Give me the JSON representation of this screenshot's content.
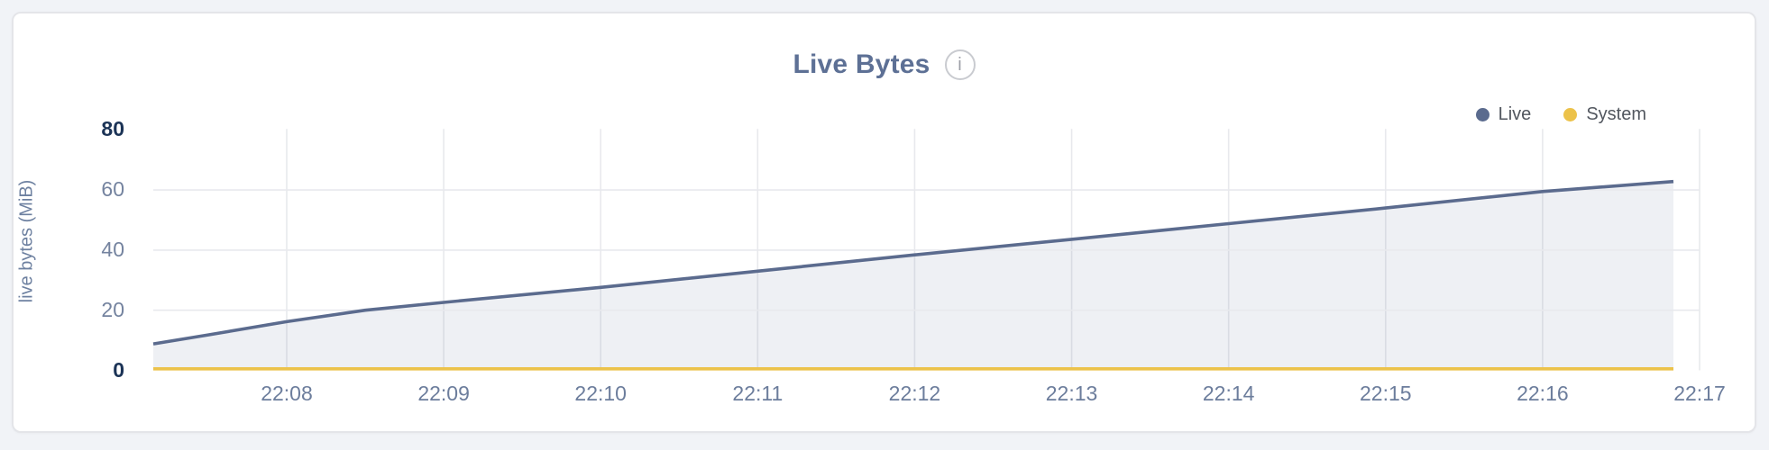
{
  "header": {
    "title": "Live Bytes",
    "info_icon_glyph": "i"
  },
  "legend": {
    "items": [
      {
        "label": "Live",
        "color": "#5b6b8e"
      },
      {
        "label": "System",
        "color": "#ecc24a"
      }
    ]
  },
  "chart_data": {
    "type": "area",
    "title": "Live Bytes",
    "xlabel": "",
    "ylabel": "live bytes (MiB)",
    "ylim": [
      0,
      80
    ],
    "y_ticks": [
      0,
      20,
      40,
      60,
      80
    ],
    "x_ticks": [
      "22:08",
      "22:09",
      "22:10",
      "22:11",
      "22:12",
      "22:13",
      "22:14",
      "22:15",
      "22:16",
      "22:17"
    ],
    "x_range": [
      "22:07:09",
      "22:17:00"
    ],
    "grid": true,
    "legend_position": "top-right",
    "series": [
      {
        "name": "Live",
        "color": "#5b6b8e",
        "fill": "rgba(91,107,143,0.10)",
        "points": [
          [
            "22:07:09",
            8.8
          ],
          [
            "22:07:30",
            11.8
          ],
          [
            "22:08:00",
            16.2
          ],
          [
            "22:08:30",
            20.0
          ],
          [
            "22:09:00",
            22.6
          ],
          [
            "22:10:00",
            27.6
          ],
          [
            "22:11:00",
            33.0
          ],
          [
            "22:12:00",
            38.4
          ],
          [
            "22:13:00",
            43.6
          ],
          [
            "22:14:00",
            48.8
          ],
          [
            "22:15:00",
            54.0
          ],
          [
            "22:16:00",
            59.5
          ],
          [
            "22:16:50",
            62.8
          ]
        ]
      },
      {
        "name": "System",
        "color": "#ecc24a",
        "fill": "none",
        "points": [
          [
            "22:07:09",
            0.5
          ],
          [
            "22:16:50",
            0.5
          ]
        ]
      }
    ]
  },
  "colors": {
    "page_background": "#f1f3f7",
    "card_background": "#ffffff",
    "card_border": "#e4e5e9",
    "title_text": "#5d7095",
    "grid_line": "#e8e9ed",
    "y_tick_minmax": "#1b3356",
    "y_tick": "#74839f",
    "x_tick": "#6c7d9c",
    "live_line": "#5b6b8e",
    "system_line": "#ecc24a"
  }
}
